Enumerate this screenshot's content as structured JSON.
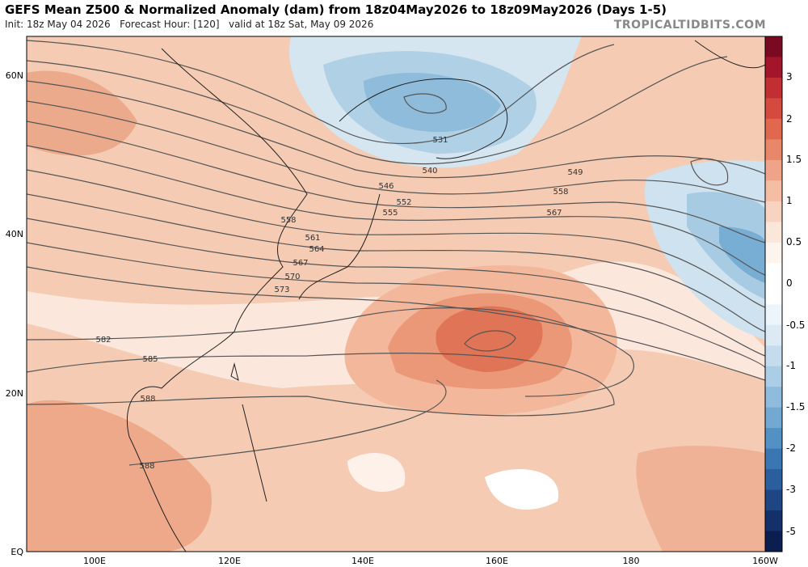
{
  "header": {
    "title": "GEFS Mean Z500 & Normalized Anomaly (dam) from 18z04May2026 to 18z09May2026 (Days 1-5)",
    "subtitle": "Init: 18z May 04 2026   Forecast Hour: [120]   valid at 18z Sat, May 09 2026",
    "credit": "TROPICALTIDBITS.COM"
  },
  "map": {
    "lat_labels": [
      "60N",
      "40N",
      "20N",
      "EQ"
    ],
    "lon_labels": [
      "100E",
      "120E",
      "140E",
      "160E",
      "180",
      "160W"
    ],
    "contour_labels": [
      "531",
      "540",
      "546",
      "549",
      "552",
      "555",
      "558",
      "558",
      "561",
      "564",
      "567",
      "567",
      "570",
      "573",
      "582",
      "585",
      "588",
      "588"
    ]
  },
  "colorbar": {
    "labels": [
      "3",
      "2",
      "1.5",
      "1",
      "0.5",
      "0",
      "-0.5",
      "-1",
      "-1.5",
      "-2",
      "-3",
      "-5"
    ]
  }
}
